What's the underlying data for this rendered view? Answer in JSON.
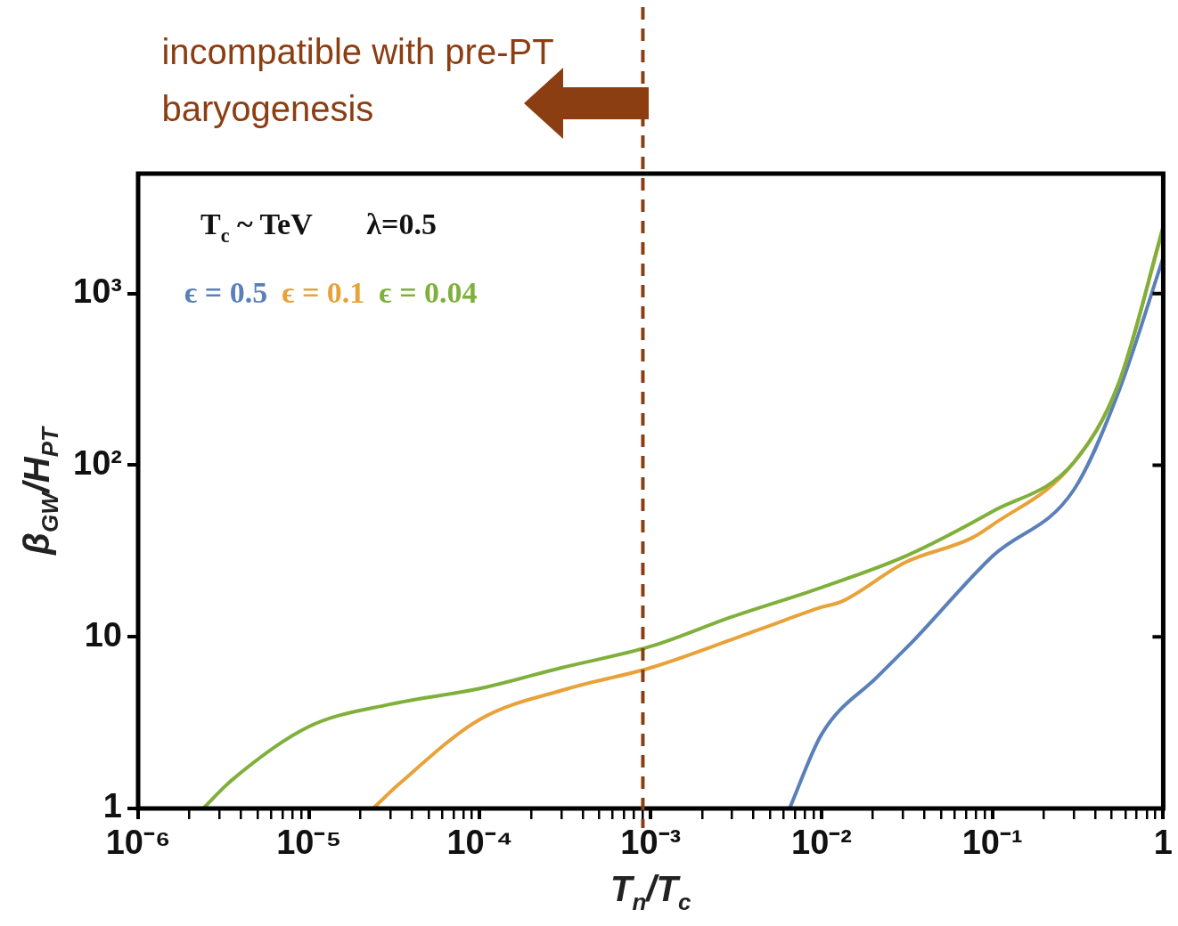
{
  "chart_data": {
    "type": "line",
    "xlabel": "T$_{n}$/T$_{c}$",
    "ylabel": "β$_{GW}$/H$_{PT}$",
    "log": "xy",
    "grid": false,
    "legend": "top left",
    "marker": "none",
    "xlim": [
      1e-06,
      1
    ],
    "ylim": [
      1,
      5000
    ],
    "xticks": [
      {
        "value": 1e-06,
        "label": "10⁻⁶"
      },
      {
        "value": 2e-06,
        "label": null
      },
      {
        "value": 3e-06,
        "label": null
      },
      {
        "value": 4e-06,
        "label": null
      },
      {
        "value": 5e-06,
        "label": null
      },
      {
        "value": 6e-06,
        "label": null
      },
      {
        "value": 7e-06,
        "label": null
      },
      {
        "value": 8e-06,
        "label": null
      },
      {
        "value": 9e-06,
        "label": null
      },
      {
        "value": 1e-05,
        "label": "10⁻⁵"
      },
      {
        "value": 2e-05,
        "label": null
      },
      {
        "value": 3e-05,
        "label": null
      },
      {
        "value": 4e-05,
        "label": null
      },
      {
        "value": 5e-05,
        "label": null
      },
      {
        "value": 6e-05,
        "label": null
      },
      {
        "value": 7e-05,
        "label": null
      },
      {
        "value": 8e-05,
        "label": null
      },
      {
        "value": 9e-05,
        "label": null
      },
      {
        "value": 0.0001,
        "label": "10⁻⁴"
      },
      {
        "value": 0.0002,
        "label": null
      },
      {
        "value": 0.0003,
        "label": null
      },
      {
        "value": 0.0004,
        "label": null
      },
      {
        "value": 0.0005,
        "label": null
      },
      {
        "value": 0.0006,
        "label": null
      },
      {
        "value": 0.0007,
        "label": null
      },
      {
        "value": 0.0008,
        "label": null
      },
      {
        "value": 0.0009,
        "label": null
      },
      {
        "value": 0.001,
        "label": "10⁻³"
      },
      {
        "value": 0.002,
        "label": null
      },
      {
        "value": 0.003,
        "label": null
      },
      {
        "value": 0.004,
        "label": null
      },
      {
        "value": 0.005,
        "label": null
      },
      {
        "value": 0.006,
        "label": null
      },
      {
        "value": 0.007,
        "label": null
      },
      {
        "value": 0.008,
        "label": null
      },
      {
        "value": 0.009,
        "label": null
      },
      {
        "value": 0.01,
        "label": "10⁻²"
      },
      {
        "value": 0.02,
        "label": null
      },
      {
        "value": 0.03,
        "label": null
      },
      {
        "value": 0.04,
        "label": null
      },
      {
        "value": 0.05,
        "label": null
      },
      {
        "value": 0.06,
        "label": null
      },
      {
        "value": 0.07,
        "label": null
      },
      {
        "value": 0.08,
        "label": null
      },
      {
        "value": 0.09,
        "label": null
      },
      {
        "value": 0.1,
        "label": "10⁻¹"
      },
      {
        "value": 0.2,
        "label": null
      },
      {
        "value": 0.3,
        "label": null
      },
      {
        "value": 0.4,
        "label": null
      },
      {
        "value": 0.5,
        "label": null
      },
      {
        "value": 0.6,
        "label": null
      },
      {
        "value": 0.7,
        "label": null
      },
      {
        "value": 0.8,
        "label": null
      },
      {
        "value": 0.9,
        "label": null
      },
      {
        "value": 1,
        "label": "1"
      }
    ],
    "yticks": [
      1,
      10,
      {
        "value": 100,
        "label": "10²"
      },
      {
        "value": 1000,
        "label": "10³"
      }
    ],
    "annotations": [
      "T$_{c}$ ~ TeV",
      "λ=0.5"
    ],
    "ref_lines": [
      {
        "axis": "x",
        "value": 0.0009,
        "label": "incompatible with pre-PT baryogenesis",
        "color": "#8b3e12",
        "line_style": "dashed"
      }
    ],
    "series": [
      {
        "name": "ϵ = 0.5",
        "color": "#5b80b8",
        "x": [
          0.0065,
          0.01,
          0.0214,
          0.0345,
          0.1,
          0.3,
          0.55,
          1
        ],
        "values": [
          1,
          2.7,
          5.9,
          9.5,
          29.5,
          72,
          270,
          1620
        ]
      },
      {
        "name": "ϵ = 0.1",
        "color": "#e8a23a",
        "x": [
          2.37e-05,
          3.4e-05,
          0.0001,
          0.00033,
          0.001,
          0.0046,
          0.01,
          0.013,
          0.031,
          0.075,
          0.1,
          0.3,
          0.55,
          1
        ],
        "values": [
          1,
          1.4,
          3.3,
          5.0,
          6.6,
          11.3,
          14.9,
          16,
          27.2,
          37.5,
          44.9,
          104,
          302,
          2400
        ]
      },
      {
        "name": "ϵ = 0.04",
        "color": "#80b03c",
        "x": [
          2.4e-06,
          3.5e-06,
          1e-05,
          3e-05,
          0.0001,
          0.0003,
          0.001,
          0.003,
          0.01,
          0.031,
          0.1,
          0.3,
          0.55,
          1
        ],
        "values": [
          1,
          1.45,
          3.0,
          4.05,
          5.0,
          6.6,
          8.8,
          13.1,
          19.4,
          29.5,
          53.7,
          104,
          302,
          2460
        ]
      }
    ]
  }
}
